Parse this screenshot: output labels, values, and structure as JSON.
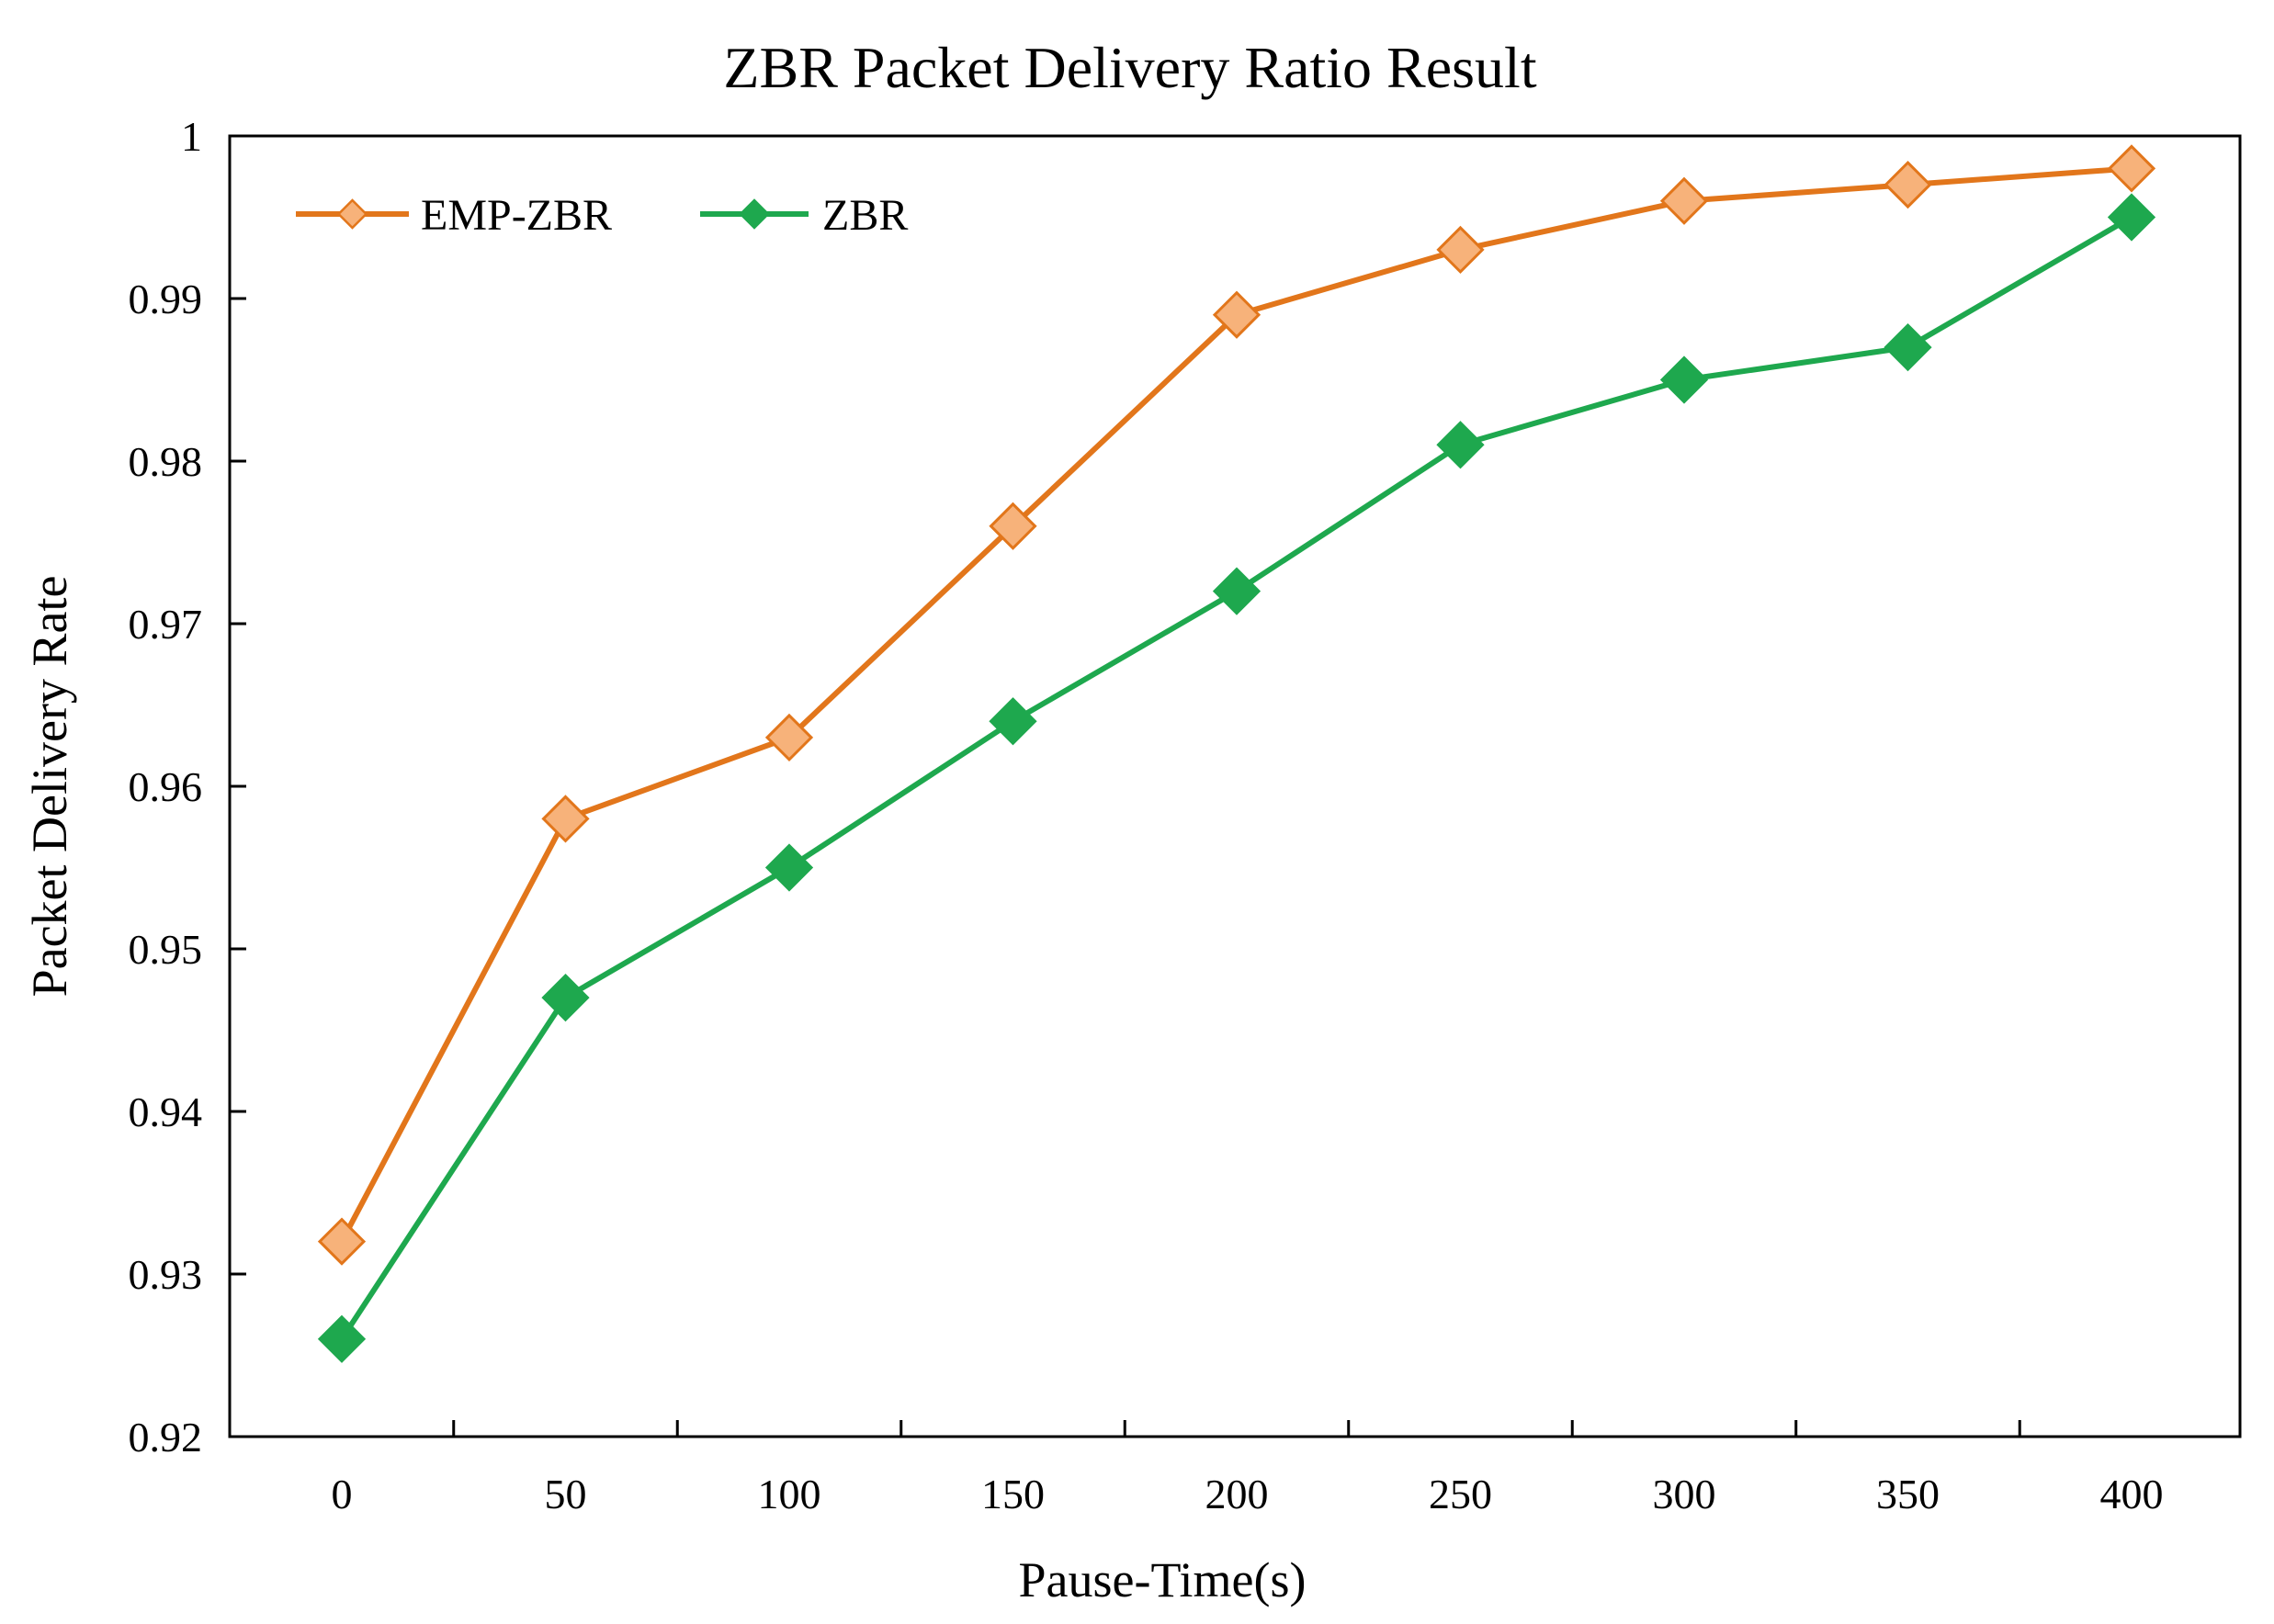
{
  "chart_data": {
    "type": "line",
    "title": "ZBR Packet Delivery Ratio Result",
    "xlabel": "Pause-Time(s)",
    "ylabel": "Packet Delivery Rate",
    "x": [
      0,
      50,
      100,
      150,
      200,
      250,
      300,
      350,
      400
    ],
    "x_tick_labels": [
      "0",
      "50",
      "100",
      "150",
      "200",
      "250",
      "300",
      "350",
      "400"
    ],
    "ylim": [
      0.92,
      1.0
    ],
    "y_ticks": [
      0.92,
      0.93,
      0.94,
      0.95,
      0.96,
      0.97,
      0.98,
      0.99,
      1.0
    ],
    "y_tick_labels": [
      "0.92",
      "0.93",
      "0.94",
      "0.95",
      "0.96",
      "0.97",
      "0.98",
      "0.99",
      "1"
    ],
    "grid": false,
    "legend_position": "top-left",
    "series": [
      {
        "name": "EMP-ZBR",
        "color": "#E2761B",
        "marker_fill": "#F7B27A",
        "values": [
          0.932,
          0.958,
          0.963,
          0.976,
          0.989,
          0.993,
          0.996,
          0.997,
          0.998
        ]
      },
      {
        "name": "ZBR",
        "color": "#1EA84E",
        "marker_fill": "#1EA84E",
        "values": [
          0.926,
          0.947,
          0.955,
          0.964,
          0.972,
          0.981,
          0.985,
          0.987,
          0.995
        ]
      }
    ]
  }
}
